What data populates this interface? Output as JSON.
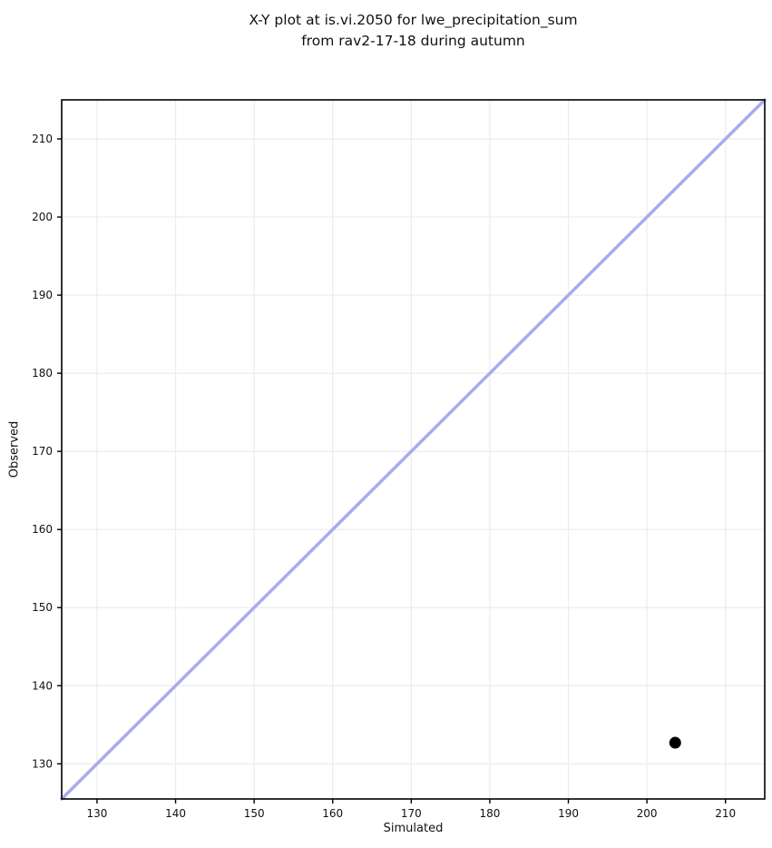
{
  "figure": {
    "title_line1": "X-Y plot at is.vi.2050 for lwe_precipitation_sum",
    "title_line2": "from rav2-17-18 during autumn"
  },
  "chart_data": {
    "type": "scatter",
    "title": "X-Y plot at is.vi.2050 for lwe_precipitation_sum\nfrom rav2-17-18 during autumn",
    "xlabel": "Simulated",
    "ylabel": "Observed",
    "xlim": [
      125.5,
      215
    ],
    "ylim": [
      125.5,
      215
    ],
    "xticks": [
      130,
      140,
      150,
      160,
      170,
      180,
      190,
      200,
      210
    ],
    "yticks": [
      130,
      140,
      150,
      160,
      170,
      180,
      190,
      200,
      210
    ],
    "grid": true,
    "legend": "none",
    "identity_line": {
      "x1": 125.5,
      "y1": 125.5,
      "x2": 215,
      "y2": 215
    },
    "points": [
      {
        "x": 203.6,
        "y": 132.7
      }
    ],
    "colors": {
      "identity_line": "#aaaaee",
      "point": "#000000",
      "grid": "#ececec",
      "spine": "#000000",
      "background": "#ffffff"
    }
  }
}
